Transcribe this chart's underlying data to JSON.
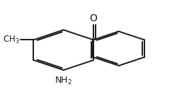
{
  "background_color": "#ffffff",
  "line_color": "#1a1a1a",
  "line_width": 1.4,
  "labels": {
    "O": {
      "text": "O",
      "fontsize": 10
    },
    "NH2": {
      "text": "NH$_2$",
      "fontsize": 9
    },
    "CH3": {
      "text": "CH$_3$",
      "fontsize": 8.5
    }
  }
}
